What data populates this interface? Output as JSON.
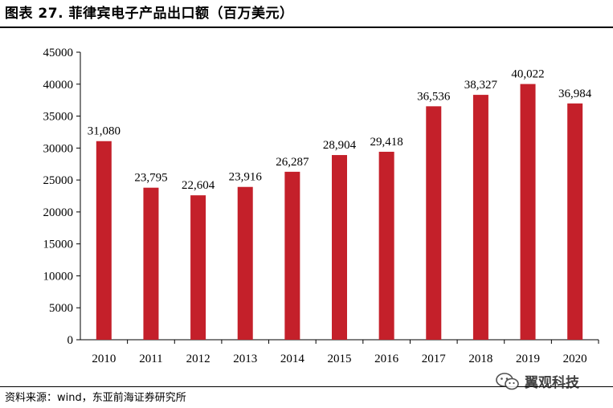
{
  "figure": {
    "title": "图表 27. 菲律宾电子产品出口额（百万美元）",
    "source": "资料来源：wind，东亚前海证券研究所",
    "watermark": "翼观科技",
    "watermark_icon": "wechat-icon"
  },
  "colors": {
    "bar": "#C4202A",
    "axis": "#000000"
  },
  "chart_data": {
    "type": "bar",
    "title": "",
    "xlabel": "",
    "ylabel": "",
    "categories": [
      "2010",
      "2011",
      "2012",
      "2013",
      "2014",
      "2015",
      "2016",
      "2017",
      "2018",
      "2019",
      "2020"
    ],
    "values": [
      31080,
      23795,
      22604,
      23916,
      26287,
      28904,
      29418,
      36536,
      38327,
      40022,
      36984
    ],
    "value_labels": [
      "31,080",
      "23,795",
      "22,604",
      "23,916",
      "26,287",
      "28,904",
      "29,418",
      "36,536",
      "38,327",
      "40,022",
      "36,984"
    ],
    "ylim": [
      0,
      45000
    ],
    "yticks": [
      "0",
      "5000",
      "10000",
      "15000",
      "20000",
      "25000",
      "30000",
      "35000",
      "40000",
      "45000"
    ],
    "grid": false,
    "legend": "none"
  }
}
